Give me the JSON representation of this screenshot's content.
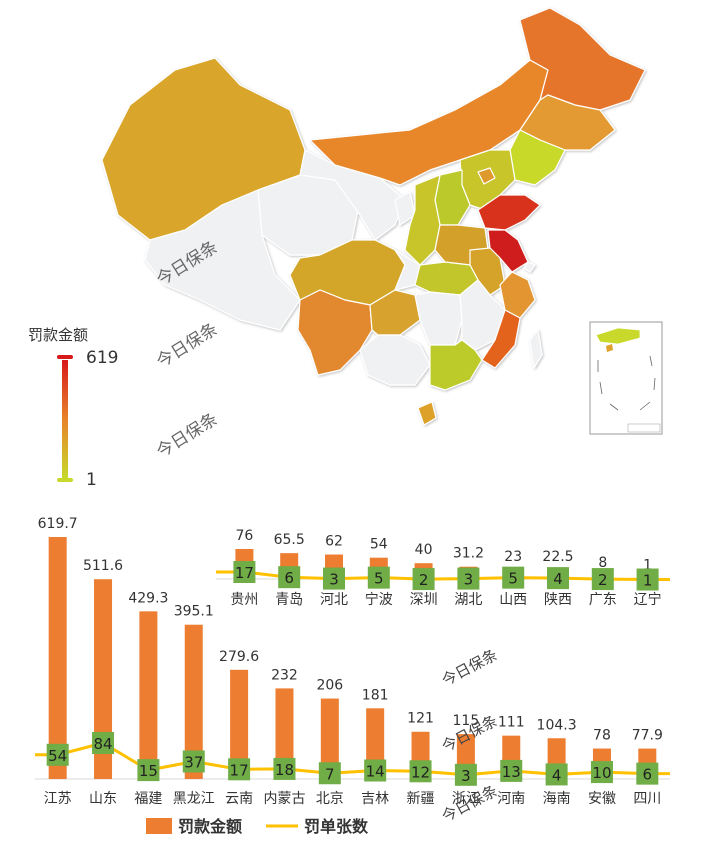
{
  "map": {
    "visual_map_title": "罚款金额",
    "visual_map_max": "619",
    "visual_map_min": "1",
    "color_high": "#d7191c",
    "color_mid": "#e8832a",
    "color_low": "#c8d92b",
    "color_none": "#f0f1f3",
    "watermark": "今日保条"
  },
  "legend": {
    "items": [
      {
        "name": "罚款金额",
        "color": "#ed7d31",
        "type": "bar"
      },
      {
        "name": "罚单张数",
        "color": "#ffc000",
        "type": "line"
      }
    ]
  },
  "chart_data": [
    {
      "type": "bar",
      "title": "",
      "categories": [
        "贵州",
        "青岛",
        "河北",
        "宁波",
        "深圳",
        "湖北",
        "山西",
        "陕西",
        "广东",
        "辽宁"
      ],
      "series": [
        {
          "name": "罚款金额",
          "values": [
            76,
            65.5,
            62,
            54,
            40,
            31.2,
            23,
            22.5,
            8,
            1
          ]
        },
        {
          "name": "罚单张数",
          "type": "line",
          "values": [
            17,
            6,
            3,
            5,
            2,
            3,
            5,
            4,
            2,
            1
          ]
        }
      ],
      "value_labels": [
        "76",
        "65.5",
        "62",
        "54",
        "40",
        "31.2",
        "23",
        "22.5",
        "8",
        "1"
      ],
      "count_labels": [
        "17",
        "6",
        "3",
        "5",
        "2",
        "3",
        "5",
        "4",
        "2",
        "1"
      ],
      "bar_color": "#ed7d31",
      "line_color": "#ffc000",
      "badge_color": "#70ad47"
    },
    {
      "type": "bar",
      "title": "",
      "categories": [
        "江苏",
        "山东",
        "福建",
        "黑龙江",
        "云南",
        "内蒙古",
        "北京",
        "吉林",
        "新疆",
        "浙江",
        "河南",
        "海南",
        "安徽",
        "四川"
      ],
      "series": [
        {
          "name": "罚款金额",
          "values": [
            619.7,
            511.6,
            429.3,
            395.1,
            279.6,
            232,
            206,
            181,
            121,
            115,
            111,
            104.3,
            78,
            77.9
          ]
        },
        {
          "name": "罚单张数",
          "type": "line",
          "values": [
            54,
            84,
            15,
            37,
            17,
            18,
            7,
            14,
            12,
            3,
            13,
            4,
            10,
            6
          ]
        }
      ],
      "value_labels": [
        "619.7",
        "511.6",
        "429.3",
        "395.1",
        "279.6",
        "232",
        "206",
        "181",
        "121",
        "115",
        "111",
        "104.3",
        "78",
        "77.9"
      ],
      "count_labels": [
        "54",
        "84",
        "15",
        "37",
        "17",
        "18",
        "7",
        "14",
        "12",
        "3",
        "13",
        "4",
        "10",
        "6"
      ],
      "bar_color": "#ed7d31",
      "line_color": "#ffc000",
      "badge_color": "#70ad47"
    }
  ]
}
